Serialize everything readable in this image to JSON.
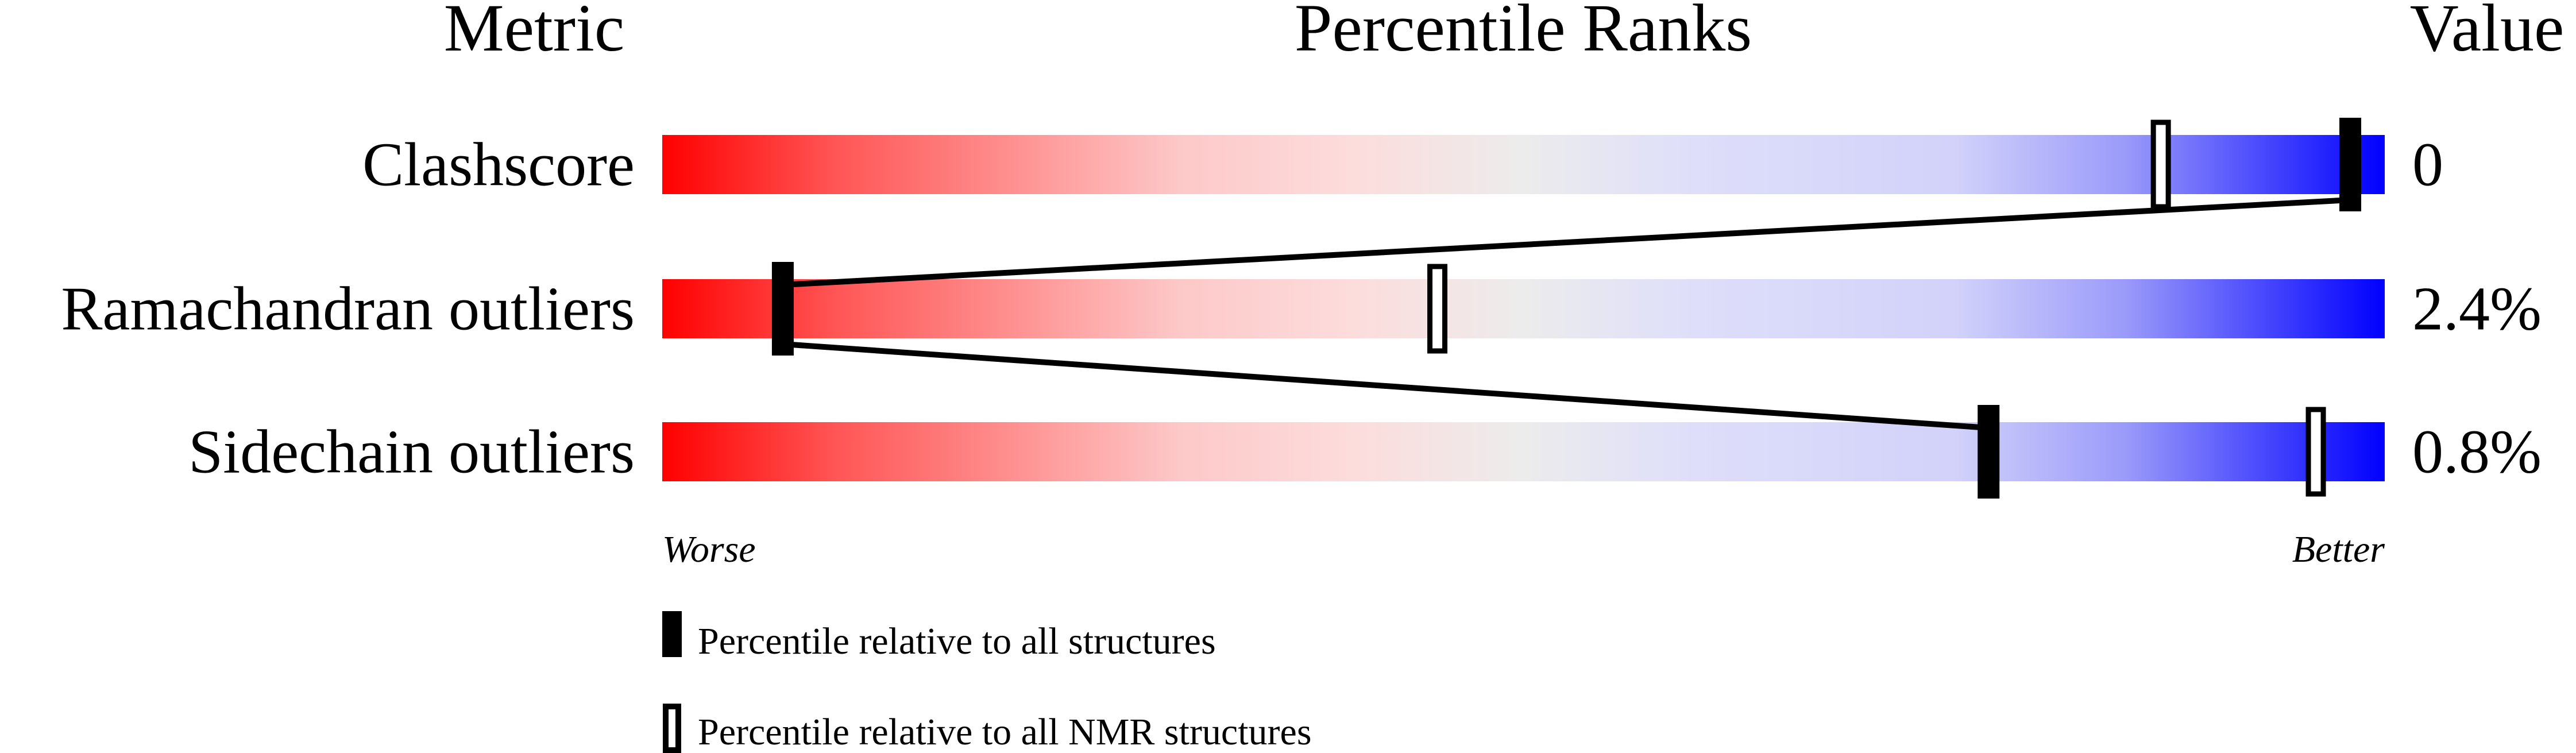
{
  "chart_data": {
    "type": "percentile-slider",
    "headers": {
      "metric": "Metric",
      "ranks": "Percentile Ranks",
      "value": "Value"
    },
    "xlim": [
      0,
      100
    ],
    "axis_labels": {
      "left": "Worse",
      "right": "Better"
    },
    "gradient_colors": [
      "#ff0000",
      "#fddcdc",
      "#ececec",
      "#dcdcfa",
      "#0000ff"
    ],
    "metrics": [
      {
        "name": "Clashscore",
        "value": "0",
        "percentile_all": 98,
        "percentile_nmr": 87
      },
      {
        "name": "Ramachandran outliers",
        "value": "2.4%",
        "percentile_all": 7,
        "percentile_nmr": 45
      },
      {
        "name": "Sidechain outliers",
        "value": "0.8%",
        "percentile_all": 77,
        "percentile_nmr": 96
      }
    ],
    "legend": [
      {
        "marker": "filled",
        "label": "Percentile relative to all structures"
      },
      {
        "marker": "open",
        "label": "Percentile relative to all NMR structures"
      }
    ]
  }
}
